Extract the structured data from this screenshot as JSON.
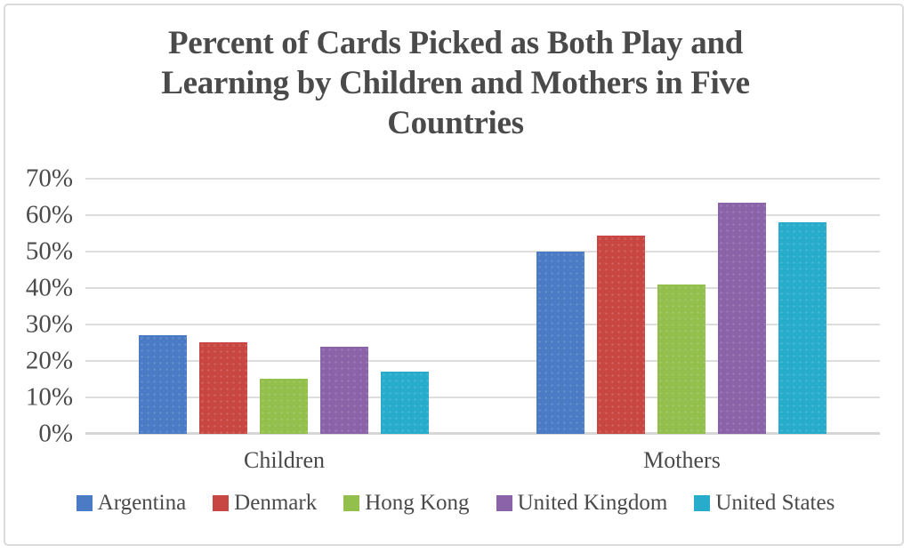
{
  "chart_data": {
    "type": "bar",
    "title": "Percent of Cards Picked as Both Play and Learning by Children and Mothers in Five Countries",
    "categories": [
      "Children",
      "Mothers"
    ],
    "series": [
      {
        "name": "Argentina",
        "color": "#4a7bc4",
        "values": [
          27,
          50
        ]
      },
      {
        "name": "Denmark",
        "color": "#c94743",
        "values": [
          25,
          54.5
        ]
      },
      {
        "name": "Hong Kong",
        "color": "#93bf4d",
        "values": [
          15,
          41
        ]
      },
      {
        "name": "United Kingdom",
        "color": "#8a63a8",
        "values": [
          24,
          63.5
        ]
      },
      {
        "name": "United States",
        "color": "#27accb",
        "values": [
          17,
          58
        ]
      }
    ],
    "xlabel": "",
    "ylabel": "",
    "ylim": [
      0,
      70
    ],
    "ytick_step": 10,
    "ytick_labels": [
      "0%",
      "10%",
      "20%",
      "30%",
      "40%",
      "50%",
      "60%",
      "70%"
    ],
    "grid": true,
    "legend_position": "bottom"
  },
  "styles": {
    "text_color": "#4a4a4a",
    "gridline_color": "#dddddd",
    "axis_line_color": "#d6d6d6",
    "frame_border_color": "#dbdbdb",
    "background_color": "#ffffff"
  }
}
